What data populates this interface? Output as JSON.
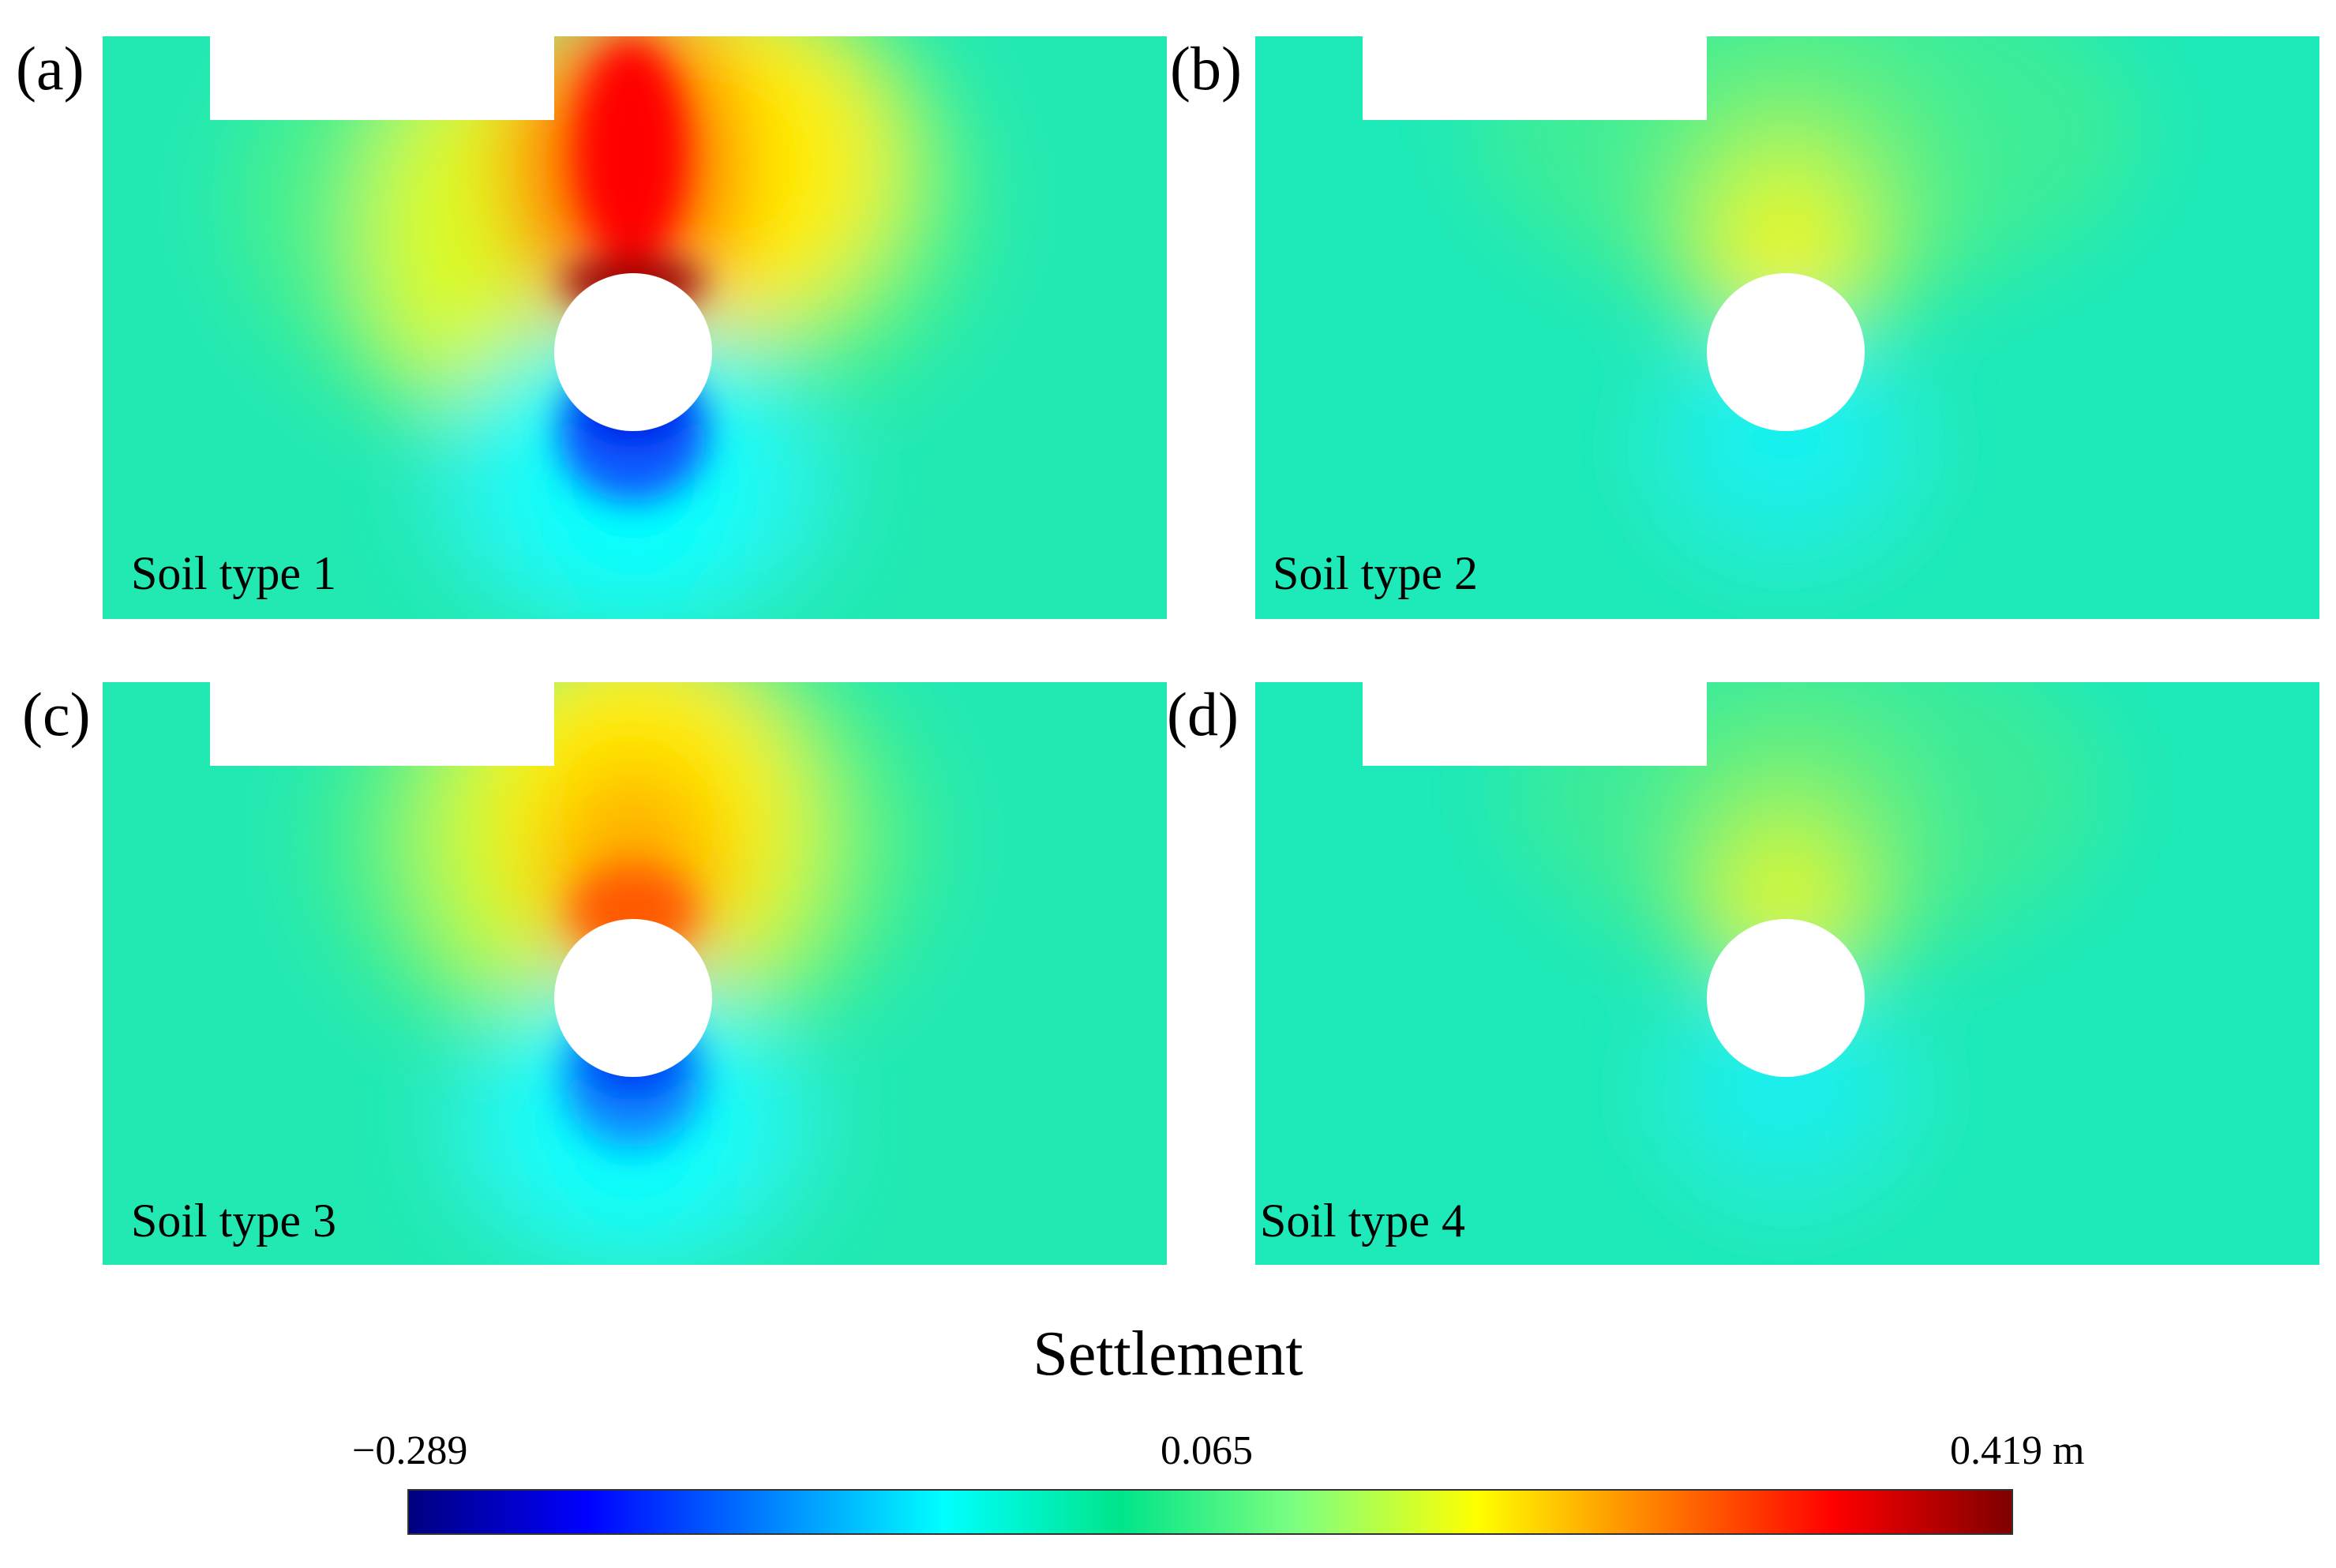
{
  "panels": [
    {
      "label": "(a)",
      "soil": "Soil type 1"
    },
    {
      "label": "(b)",
      "soil": "Soil type 2"
    },
    {
      "label": "(c)",
      "soil": "Soil type 3"
    },
    {
      "label": "(d)",
      "soil": "Soil type 4"
    }
  ],
  "colorbar": {
    "title": "Settlement",
    "min_label": "−0.289",
    "mid_label": "0.065",
    "max_label": "0.419 m",
    "min": -0.289,
    "mid": 0.065,
    "max": 0.419,
    "colormap": [
      "#00007f",
      "#0000ff",
      "#007fff",
      "#00ffff",
      "#00e58a",
      "#7fff7f",
      "#ffff00",
      "#ff7f00",
      "#ff0000",
      "#7f0000"
    ]
  },
  "colors": {
    "background_field": "#1ee9b4",
    "cavity": "#ffffff"
  }
}
